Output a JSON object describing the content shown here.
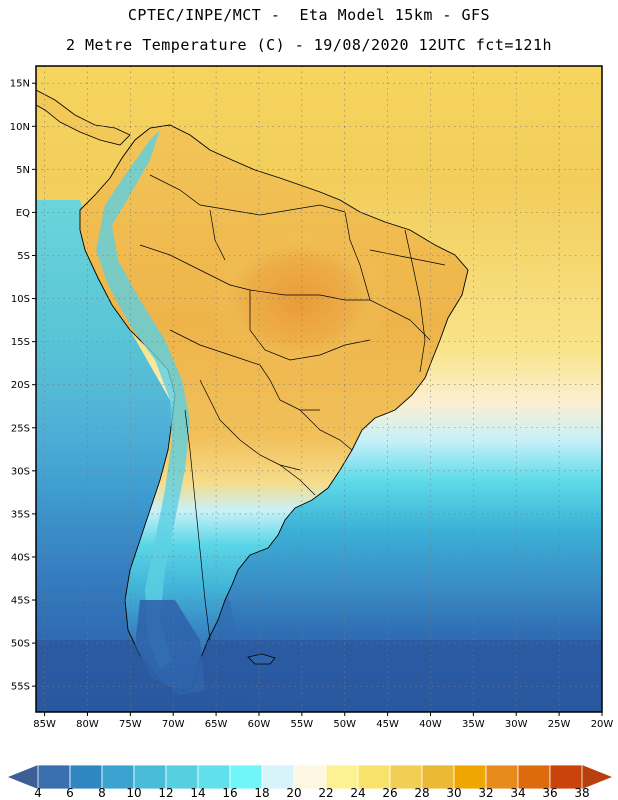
{
  "header": {
    "line1": "CPTEC/INPE/MCT -  Eta Model 15km - GFS",
    "line2": "2 Metre Temperature (C) - 19/08/2020 12UTC fct=121h"
  },
  "map": {
    "lon_range": [
      -86,
      -20
    ],
    "lat_range": [
      -58,
      17
    ],
    "lat_labels": [
      "15N",
      "10N",
      "5N",
      "EQ",
      "5S",
      "10S",
      "15S",
      "20S",
      "25S",
      "30S",
      "35S",
      "40S",
      "45S",
      "50S",
      "55S"
    ],
    "lat_values": [
      15,
      10,
      5,
      0,
      -5,
      -10,
      -15,
      -20,
      -25,
      -30,
      -35,
      -40,
      -45,
      -50,
      -55
    ],
    "lon_labels": [
      "85W",
      "80W",
      "75W",
      "70W",
      "65W",
      "60W",
      "55W",
      "50W",
      "45W",
      "40W",
      "35W",
      "30W",
      "25W",
      "20W"
    ],
    "lon_values": [
      -85,
      -80,
      -75,
      -70,
      -65,
      -60,
      -55,
      -50,
      -45,
      -40,
      -35,
      -30,
      -25,
      -20
    ]
  },
  "colorbar": {
    "labels": [
      "4",
      "6",
      "8",
      "10",
      "12",
      "14",
      "16",
      "18",
      "20",
      "22",
      "24",
      "26",
      "28",
      "30",
      "32",
      "34",
      "36",
      "38"
    ],
    "colors": [
      "#3a6fae",
      "#2f86c1",
      "#3aa3cf",
      "#48bcd8",
      "#56cfe0",
      "#5fe0ea",
      "#70f6f9",
      "#d6f4fa",
      "#fdf7e2",
      "#fdf293",
      "#f9e26b",
      "#f1cf54",
      "#eab935",
      "#f0a600",
      "#e98a1c",
      "#dd6a0d",
      "#c9430a"
    ],
    "low_color": "#3c6096",
    "high_color": "#b8400f"
  },
  "palette": {
    "ocean_south": "#2a5aa3",
    "ocean_mid": "#3d86c3",
    "ocean_warm": "#46c1dd",
    "tropics": "#f4d565",
    "hot_core": "#eaa63a",
    "andes": "#6ed3e6",
    "coast": "#000000"
  }
}
